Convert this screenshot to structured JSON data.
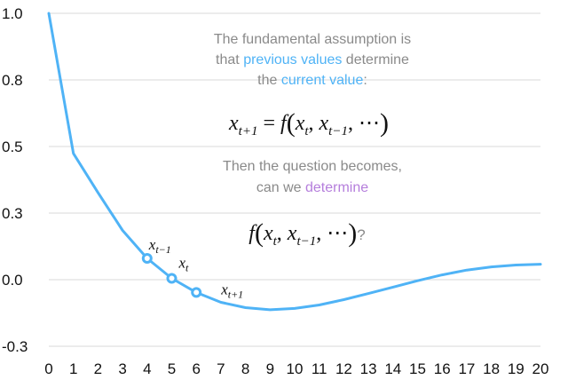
{
  "chart_data": {
    "type": "line",
    "x": [
      0,
      1,
      2,
      3,
      4,
      5,
      6,
      7,
      8,
      9,
      10,
      11,
      12,
      13,
      14,
      15,
      16,
      17,
      18,
      19,
      20
    ],
    "series": [
      {
        "values": [
          1.0,
          0.474,
          0.327,
          0.185,
          0.08,
          0.005,
          -0.048,
          -0.085,
          -0.105,
          -0.113,
          -0.108,
          -0.095,
          -0.075,
          -0.052,
          -0.028,
          -0.004,
          0.018,
          0.036,
          0.048,
          0.055,
          0.058
        ]
      }
    ],
    "highlighted_points": [
      {
        "x": 4,
        "y": 0.08,
        "label_base": "x",
        "label_sub": "t−1"
      },
      {
        "x": 5,
        "y": 0.005,
        "label_base": "x",
        "label_sub": "t"
      },
      {
        "x": 6,
        "y": -0.048,
        "label_base": "x",
        "label_sub": "t+1"
      }
    ],
    "y_ticks": [
      "1.0",
      "0.8",
      "0.5",
      "0.3",
      "0.0",
      "-0.3"
    ],
    "y_tick_values": [
      1.0,
      0.75,
      0.5,
      0.25,
      0.0,
      -0.25
    ],
    "x_ticks": [
      "0",
      "1",
      "2",
      "3",
      "4",
      "5",
      "6",
      "7",
      "8",
      "9",
      "10",
      "11",
      "12",
      "13",
      "14",
      "15",
      "16",
      "17",
      "18",
      "19",
      "20"
    ],
    "xlim": [
      0,
      20
    ],
    "ylim": [
      -0.25,
      1.0
    ],
    "grid": true,
    "title": "",
    "xlabel": "",
    "ylabel": "",
    "colors": {
      "line": "#4fb3f6",
      "grid": "#d9d9d9",
      "highlight_blue": "#4fb3f6",
      "highlight_purple": "#b57edc",
      "note_text": "#8a8a8a"
    }
  },
  "annotation": {
    "line1": "The fundamental assumption is",
    "line2_pre": "that ",
    "line2_hl": "previous values",
    "line2_post": " determine",
    "line3_pre": "the ",
    "line3_hl": "current value",
    "line3_post": ":",
    "eq1": {
      "lhs_base": "x",
      "lhs_sub": "t+1",
      "rhs_f": "f",
      "arg1_base": "x",
      "arg1_sub": "t",
      "arg2_base": "x",
      "arg2_sub": "t−1",
      "ellipsis": "⋯"
    },
    "line4": "Then the question becomes,",
    "line5_pre": "can we ",
    "line5_hl": "determine",
    "eq2": {
      "f": "f",
      "arg1_base": "x",
      "arg1_sub": "t",
      "arg2_base": "x",
      "arg2_sub": "t−1",
      "ellipsis": "⋯",
      "suffix": "?"
    }
  }
}
